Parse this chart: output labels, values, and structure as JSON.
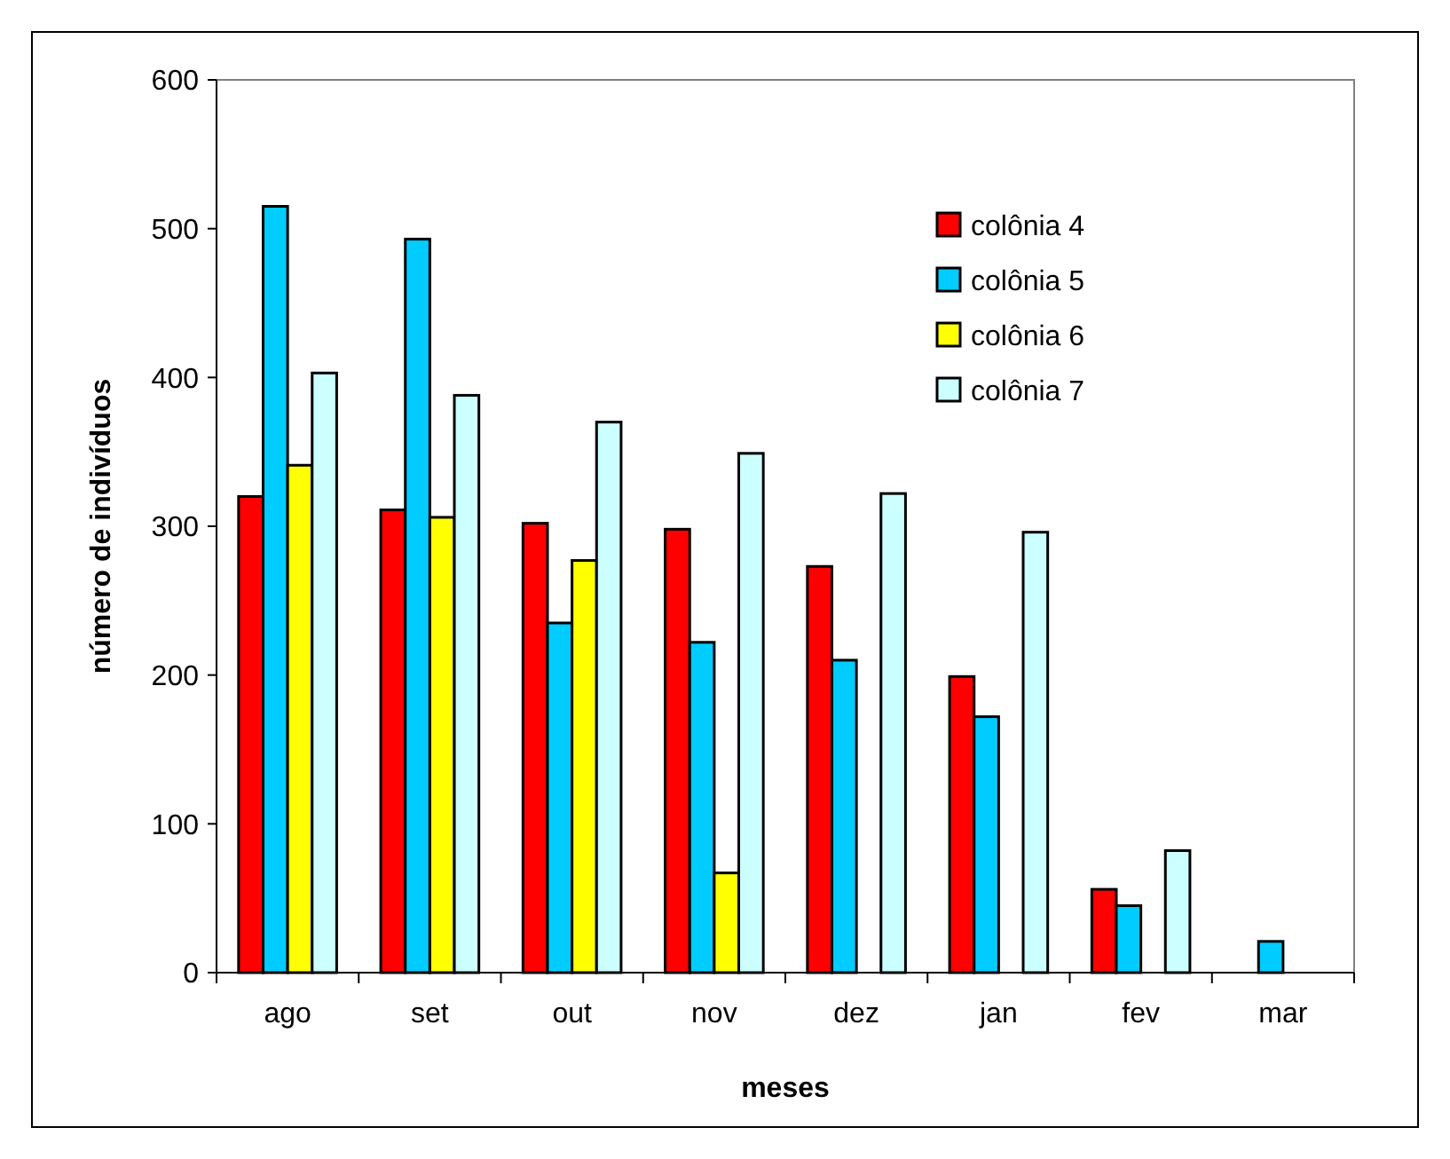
{
  "chart_data": {
    "type": "bar",
    "xlabel": "meses",
    "ylabel": "número de indivíduos",
    "categories": [
      "ago",
      "set",
      "out",
      "nov",
      "dez",
      "jan",
      "fev",
      "mar"
    ],
    "series": [
      {
        "name": "colônia 4",
        "color": "#ff0000",
        "values": [
          320,
          311,
          302,
          298,
          273,
          199,
          56,
          null
        ]
      },
      {
        "name": "colônia 5",
        "color": "#00ccff",
        "values": [
          515,
          493,
          235,
          222,
          210,
          172,
          45,
          21
        ]
      },
      {
        "name": "colônia 6",
        "color": "#ffff00",
        "values": [
          341,
          306,
          277,
          67,
          null,
          null,
          null,
          null
        ]
      },
      {
        "name": "colônia 7",
        "color": "#ccffff",
        "values": [
          403,
          388,
          370,
          349,
          322,
          296,
          82,
          null
        ]
      }
    ],
    "ylim": [
      0,
      600
    ],
    "yticks": [
      0,
      100,
      200,
      300,
      400,
      500,
      600
    ],
    "grid": false,
    "legend": "top right"
  }
}
